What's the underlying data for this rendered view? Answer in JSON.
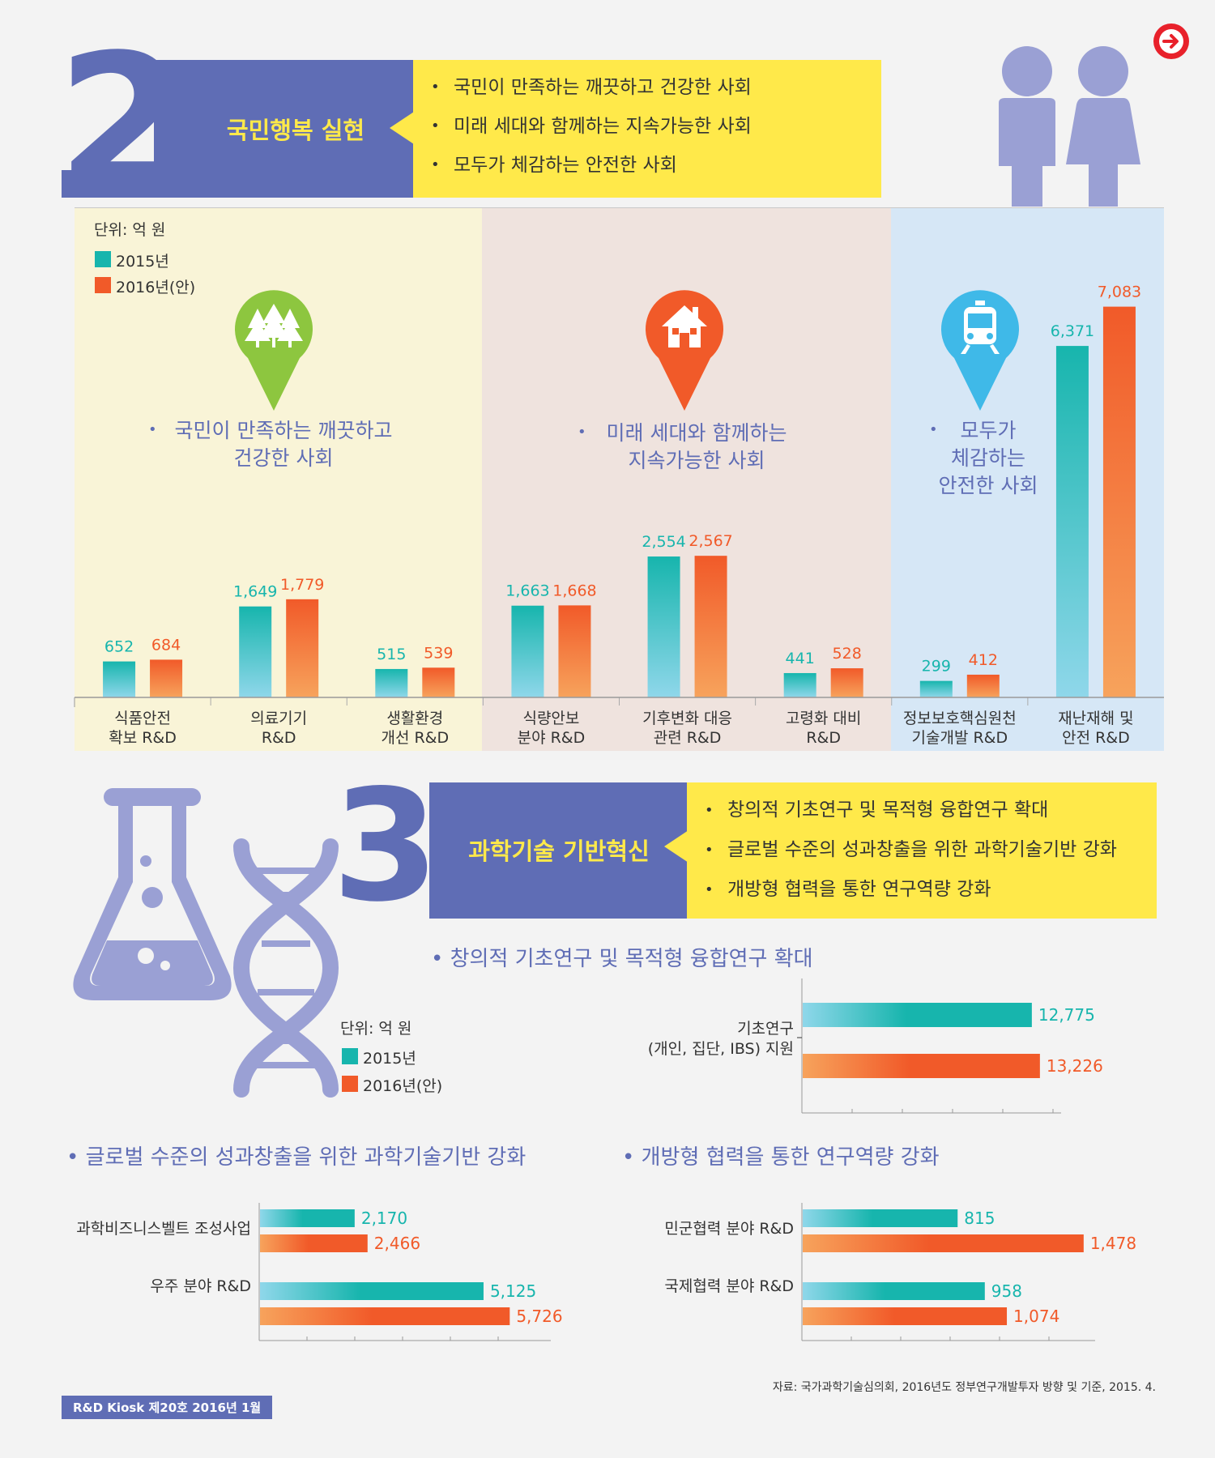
{
  "section2": {
    "number": "2",
    "title": "국민행복 실현",
    "bullets": [
      "국민이 만족하는 깨끗하고 건강한 사회",
      "미래 세대와 함께하는 지속가능한 사회",
      "모두가 체감하는 안전한 사회"
    ],
    "unit": "단위: 억 원",
    "legend": [
      "2015년",
      "2016년(안)"
    ],
    "panels": [
      {
        "label": "국민이 만족하는 깨끗하고\n건강한 사회",
        "icon": "trees-icon",
        "color": "#8dc63f"
      },
      {
        "label": "미래 세대와 함께하는\n지속가능한 사회",
        "icon": "house-icon",
        "color": "#f15a29"
      },
      {
        "label": "모두가\n체감하는\n안전한 사회",
        "icon": "train-icon",
        "color": "#3fb9e8"
      }
    ]
  },
  "section3": {
    "number": "3",
    "title": "과학기술 기반혁신",
    "bullets": [
      "창의적 기초연구 및 목적형 융합연구 확대",
      "글로벌 수준의 성과창출을 위한 과학기술기반 강화",
      "개방형 협력을 통한 연구역량 강화"
    ],
    "unit": "단위: 억 원",
    "legend": [
      "2015년",
      "2016년(안)"
    ],
    "sub1_title": "창의적 기초연구 및 목적형 융합연구 확대",
    "sub2_title": "글로벌 수준의 성과창출을 위한 과학기술기반 강화",
    "sub3_title": "개방형 협력을 통한 연구역량 강화"
  },
  "colors": {
    "teal": "#17b5ad",
    "orange": "#f15a29",
    "navy": "#5f6db5",
    "yellow": "#ffe94a"
  },
  "chart_data": [
    {
      "type": "bar",
      "categories": [
        "식품안전\n확보 R&D",
        "의료기기\nR&D",
        "생활환경\n개선 R&D",
        "식량안보\n분야 R&D",
        "기후변화 대응\n관련 R&D",
        "고령화 대비\nR&D",
        "정보보호핵심원천\n기술개발 R&D",
        "재난재해 및\n안전 R&D"
      ],
      "series": [
        {
          "name": "2015년",
          "values": [
            652,
            1649,
            515,
            1663,
            2554,
            441,
            299,
            6371
          ],
          "labels": [
            "652",
            "1,649",
            "515",
            "1,663",
            "2,554",
            "441",
            "299",
            "6,371"
          ]
        },
        {
          "name": "2016년(안)",
          "values": [
            684,
            1779,
            539,
            1668,
            2567,
            528,
            412,
            7083
          ],
          "labels": [
            "684",
            "1,779",
            "539",
            "1,668",
            "2,567",
            "528",
            "412",
            "7,083"
          ]
        }
      ]
    },
    {
      "type": "bar",
      "orientation": "horizontal",
      "categories": [
        "기초연구\n(개인, 집단, IBS) 지원"
      ],
      "series": [
        {
          "name": "2015년",
          "values": [
            12775
          ],
          "labels": [
            "12,775"
          ]
        },
        {
          "name": "2016년(안)",
          "values": [
            13226
          ],
          "labels": [
            "13,226"
          ]
        }
      ]
    },
    {
      "type": "bar",
      "orientation": "horizontal",
      "categories": [
        "과학비즈니스벨트 조성사업",
        "우주 분야 R&D"
      ],
      "series": [
        {
          "name": "2015년",
          "values": [
            2170,
            5125
          ],
          "labels": [
            "2,170",
            "5,125"
          ]
        },
        {
          "name": "2016년(안)",
          "values": [
            2466,
            5726
          ],
          "labels": [
            "2,466",
            "5,726"
          ]
        }
      ]
    },
    {
      "type": "bar",
      "orientation": "horizontal",
      "categories": [
        "민군협력 분야 R&D",
        "국제협력 분야 R&D"
      ],
      "series": [
        {
          "name": "2015년",
          "values": [
            815,
            958
          ],
          "labels": [
            "815",
            "958"
          ]
        },
        {
          "name": "2016년(안)",
          "values": [
            1478,
            1074
          ],
          "labels": [
            "1,478",
            "1,074"
          ]
        }
      ]
    }
  ],
  "source": "자료: 국가과학기술심의회, 2016년도 정부연구개발투자 방향 및 기준, 2015. 4.",
  "footer_badge": "R&D Kiosk 제20호 2016년 1월"
}
